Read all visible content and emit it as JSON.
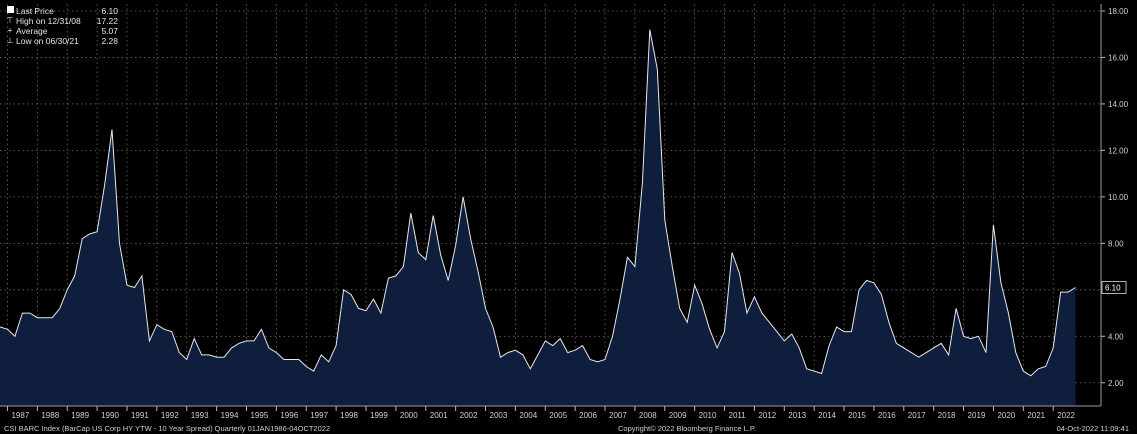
{
  "legend": {
    "items": [
      {
        "label": "Last Price",
        "value": "6.10"
      },
      {
        "label": "High on 12/31/08",
        "value": "17.22"
      },
      {
        "label": "Average",
        "value": "5.07"
      },
      {
        "label": "Low on 06/30/21",
        "value": "2.28"
      }
    ]
  },
  "footer": {
    "left": "CSI BARC Index (BarCap US Corp HY YTW - 10 Year Spread) Quarterly 01JAN1986-04OCT2022",
    "center": "Copyright© 2022 Bloomberg Finance L.P.",
    "right": "04-Oct-2022 11:09:41"
  },
  "colors": {
    "background": "#000000",
    "area_fill": "#0e1e3c",
    "line": "#e8e8e8",
    "grid": "#6a6a6a"
  },
  "chart_data": {
    "type": "area",
    "ylim": [
      1.0,
      18.3
    ],
    "yticks": [
      2,
      4,
      6,
      8,
      10,
      12,
      14,
      16,
      18
    ],
    "ytick_labels": [
      "2.00",
      "4.00",
      "6.00",
      "8.00",
      "10.00",
      "12.00",
      "14.00",
      "16.00",
      "18.00"
    ],
    "xlim": [
      1986.75,
      2023.6
    ],
    "xticks": [
      1987,
      1988,
      1989,
      1990,
      1991,
      1992,
      1993,
      1994,
      1995,
      1996,
      1997,
      1998,
      1999,
      2000,
      2001,
      2002,
      2003,
      2004,
      2005,
      2006,
      2007,
      2008,
      2009,
      2010,
      2011,
      2012,
      2013,
      2014,
      2015,
      2016,
      2017,
      2018,
      2019,
      2020,
      2021,
      2022
    ],
    "xtick_labels": [
      "1987",
      "1988",
      "1989",
      "1990",
      "1991",
      "1992",
      "1993",
      "1994",
      "1995",
      "1996",
      "1997",
      "1998",
      "1999",
      "2000",
      "2001",
      "2002",
      "2003",
      "2004",
      "2005",
      "2006",
      "2007",
      "2008",
      "2009",
      "2010",
      "2011",
      "2012",
      "2013",
      "2014",
      "2015",
      "2016",
      "2017",
      "2018",
      "2019",
      "2020",
      "2021",
      "2022"
    ],
    "grid": true,
    "last_value_label": "6.10",
    "series": [
      {
        "x": [
          1986.75,
          1987.0,
          1987.25,
          1987.5,
          1987.75,
          1988.0,
          1988.25,
          1988.5,
          1988.75,
          1989.0,
          1989.25,
          1989.5,
          1989.75,
          1990.0,
          1990.25,
          1990.5,
          1990.75,
          1991.0,
          1991.25,
          1991.5,
          1991.75,
          1992.0,
          1992.25,
          1992.5,
          1992.75,
          1993.0,
          1993.25,
          1993.5,
          1993.75,
          1994.0,
          1994.25,
          1994.5,
          1994.75,
          1995.0,
          1995.25,
          1995.5,
          1995.75,
          1996.0,
          1996.25,
          1996.5,
          1996.75,
          1997.0,
          1997.25,
          1997.5,
          1997.75,
          1998.0,
          1998.25,
          1998.5,
          1998.75,
          1999.0,
          1999.25,
          1999.5,
          1999.75,
          2000.0,
          2000.25,
          2000.5,
          2000.75,
          2001.0,
          2001.25,
          2001.5,
          2001.75,
          2002.0,
          2002.25,
          2002.5,
          2002.75,
          2003.0,
          2003.25,
          2003.5,
          2003.75,
          2004.0,
          2004.25,
          2004.5,
          2004.75,
          2005.0,
          2005.25,
          2005.5,
          2005.75,
          2006.0,
          2006.25,
          2006.5,
          2006.75,
          2007.0,
          2007.25,
          2007.5,
          2007.75,
          2008.0,
          2008.25,
          2008.5,
          2008.75,
          2009.0,
          2009.25,
          2009.5,
          2009.75,
          2010.0,
          2010.25,
          2010.5,
          2010.75,
          2011.0,
          2011.25,
          2011.5,
          2011.75,
          2012.0,
          2012.25,
          2012.5,
          2012.75,
          2013.0,
          2013.25,
          2013.5,
          2013.75,
          2014.0,
          2014.25,
          2014.5,
          2014.75,
          2015.0,
          2015.25,
          2015.5,
          2015.75,
          2016.0,
          2016.25,
          2016.5,
          2016.75,
          2017.0,
          2017.25,
          2017.5,
          2017.75,
          2018.0,
          2018.25,
          2018.5,
          2018.75,
          2019.0,
          2019.25,
          2019.5,
          2019.75,
          2020.0,
          2020.25,
          2020.5,
          2020.75,
          2021.0,
          2021.25,
          2021.5,
          2021.75,
          2022.0,
          2022.25,
          2022.5,
          2022.75
        ],
        "values": [
          4.4,
          4.3,
          4.0,
          5.0,
          5.0,
          4.8,
          4.8,
          4.8,
          5.2,
          6.0,
          6.6,
          8.2,
          8.4,
          8.5,
          10.5,
          12.9,
          8.0,
          6.2,
          6.1,
          6.6,
          3.8,
          4.5,
          4.3,
          4.2,
          3.3,
          3.0,
          3.9,
          3.2,
          3.2,
          3.1,
          3.1,
          3.5,
          3.7,
          3.8,
          3.8,
          4.3,
          3.5,
          3.3,
          3.0,
          3.0,
          3.0,
          2.7,
          2.5,
          3.2,
          2.9,
          3.6,
          6.0,
          5.8,
          5.2,
          5.1,
          5.6,
          5.0,
          6.5,
          6.6,
          7.0,
          9.3,
          7.6,
          7.3,
          9.2,
          7.5,
          6.4,
          7.9,
          10.0,
          8.2,
          6.8,
          5.2,
          4.4,
          3.1,
          3.3,
          3.4,
          3.2,
          2.6,
          3.2,
          3.8,
          3.6,
          3.9,
          3.3,
          3.4,
          3.6,
          3.0,
          2.9,
          3.0,
          4.0,
          5.6,
          7.4,
          7.0,
          10.6,
          17.2,
          15.5,
          9.0,
          7.0,
          5.2,
          4.6,
          6.2,
          5.4,
          4.3,
          3.5,
          4.2,
          7.6,
          6.7,
          5.0,
          5.7,
          5.0,
          4.6,
          4.2,
          3.8,
          4.1,
          3.5,
          2.6,
          2.5,
          2.4,
          3.6,
          4.4,
          4.2,
          4.2,
          6.0,
          6.4,
          6.3,
          5.8,
          4.6,
          3.7,
          3.5,
          3.3,
          3.1,
          3.3,
          3.5,
          3.7,
          3.2,
          5.2,
          4.0,
          3.9,
          4.0,
          3.3,
          8.8,
          6.3,
          5.0,
          3.3,
          2.5,
          2.3,
          2.6,
          2.7,
          3.5,
          5.9,
          5.9,
          6.1
        ]
      }
    ]
  }
}
